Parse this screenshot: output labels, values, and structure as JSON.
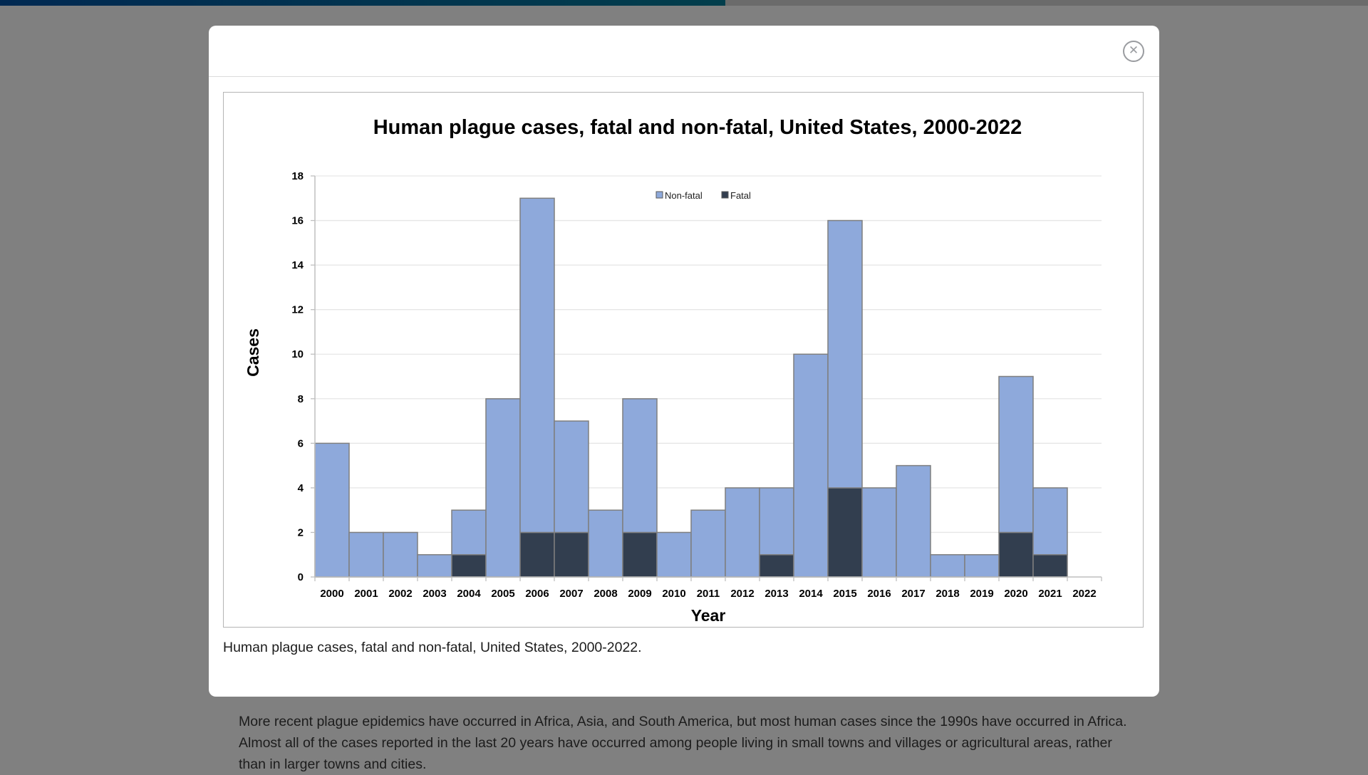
{
  "page": {
    "progress_percent": 53,
    "paragraph": "More recent plague epidemics have occurred in Africa, Asia, and South America, but most human cases since the 1990s have occurred in Africa. Almost all of the cases reported in the last 20 years have occurred among people living in small towns and villages or agricultural areas, rather than in larger towns and cities."
  },
  "modal": {
    "close_icon": "close-circle-icon",
    "caption": "Human plague cases, fatal and non-fatal, United States, 2000-2022."
  },
  "colors": {
    "non_fatal": "#8EA9DB",
    "fatal": "#323E4F",
    "bar_border": "#7F7F7F",
    "gridline": "#E6E6E6"
  },
  "chart_data": {
    "type": "bar",
    "stacked": true,
    "title": "Human plague cases, fatal and non-fatal, United States, 2000-2022",
    "xlabel": "Year",
    "ylabel": "Cases",
    "ylim": [
      0,
      18
    ],
    "yticks": [
      "0",
      "2",
      "4",
      "6",
      "8",
      "10",
      "12",
      "14",
      "16",
      "18"
    ],
    "grid": true,
    "legend_position": "top-center",
    "categories": [
      "2000",
      "2001",
      "2002",
      "2003",
      "2004",
      "2005",
      "2006",
      "2007",
      "2008",
      "2009",
      "2010",
      "2011",
      "2012",
      "2013",
      "2014",
      "2015",
      "2016",
      "2017",
      "2018",
      "2019",
      "2020",
      "2021",
      "2022"
    ],
    "series": [
      {
        "name": "Fatal",
        "values": [
          0,
          0,
          0,
          0,
          1,
          0,
          2,
          2,
          0,
          2,
          0,
          0,
          0,
          1,
          0,
          4,
          0,
          0,
          0,
          0,
          2,
          1,
          0
        ]
      },
      {
        "name": "Non-fatal",
        "values": [
          6,
          2,
          2,
          1,
          2,
          8,
          15,
          5,
          3,
          6,
          2,
          3,
          4,
          3,
          10,
          12,
          4,
          5,
          1,
          1,
          7,
          3,
          0
        ]
      }
    ],
    "legend": [
      "Non-fatal",
      "Fatal"
    ]
  }
}
